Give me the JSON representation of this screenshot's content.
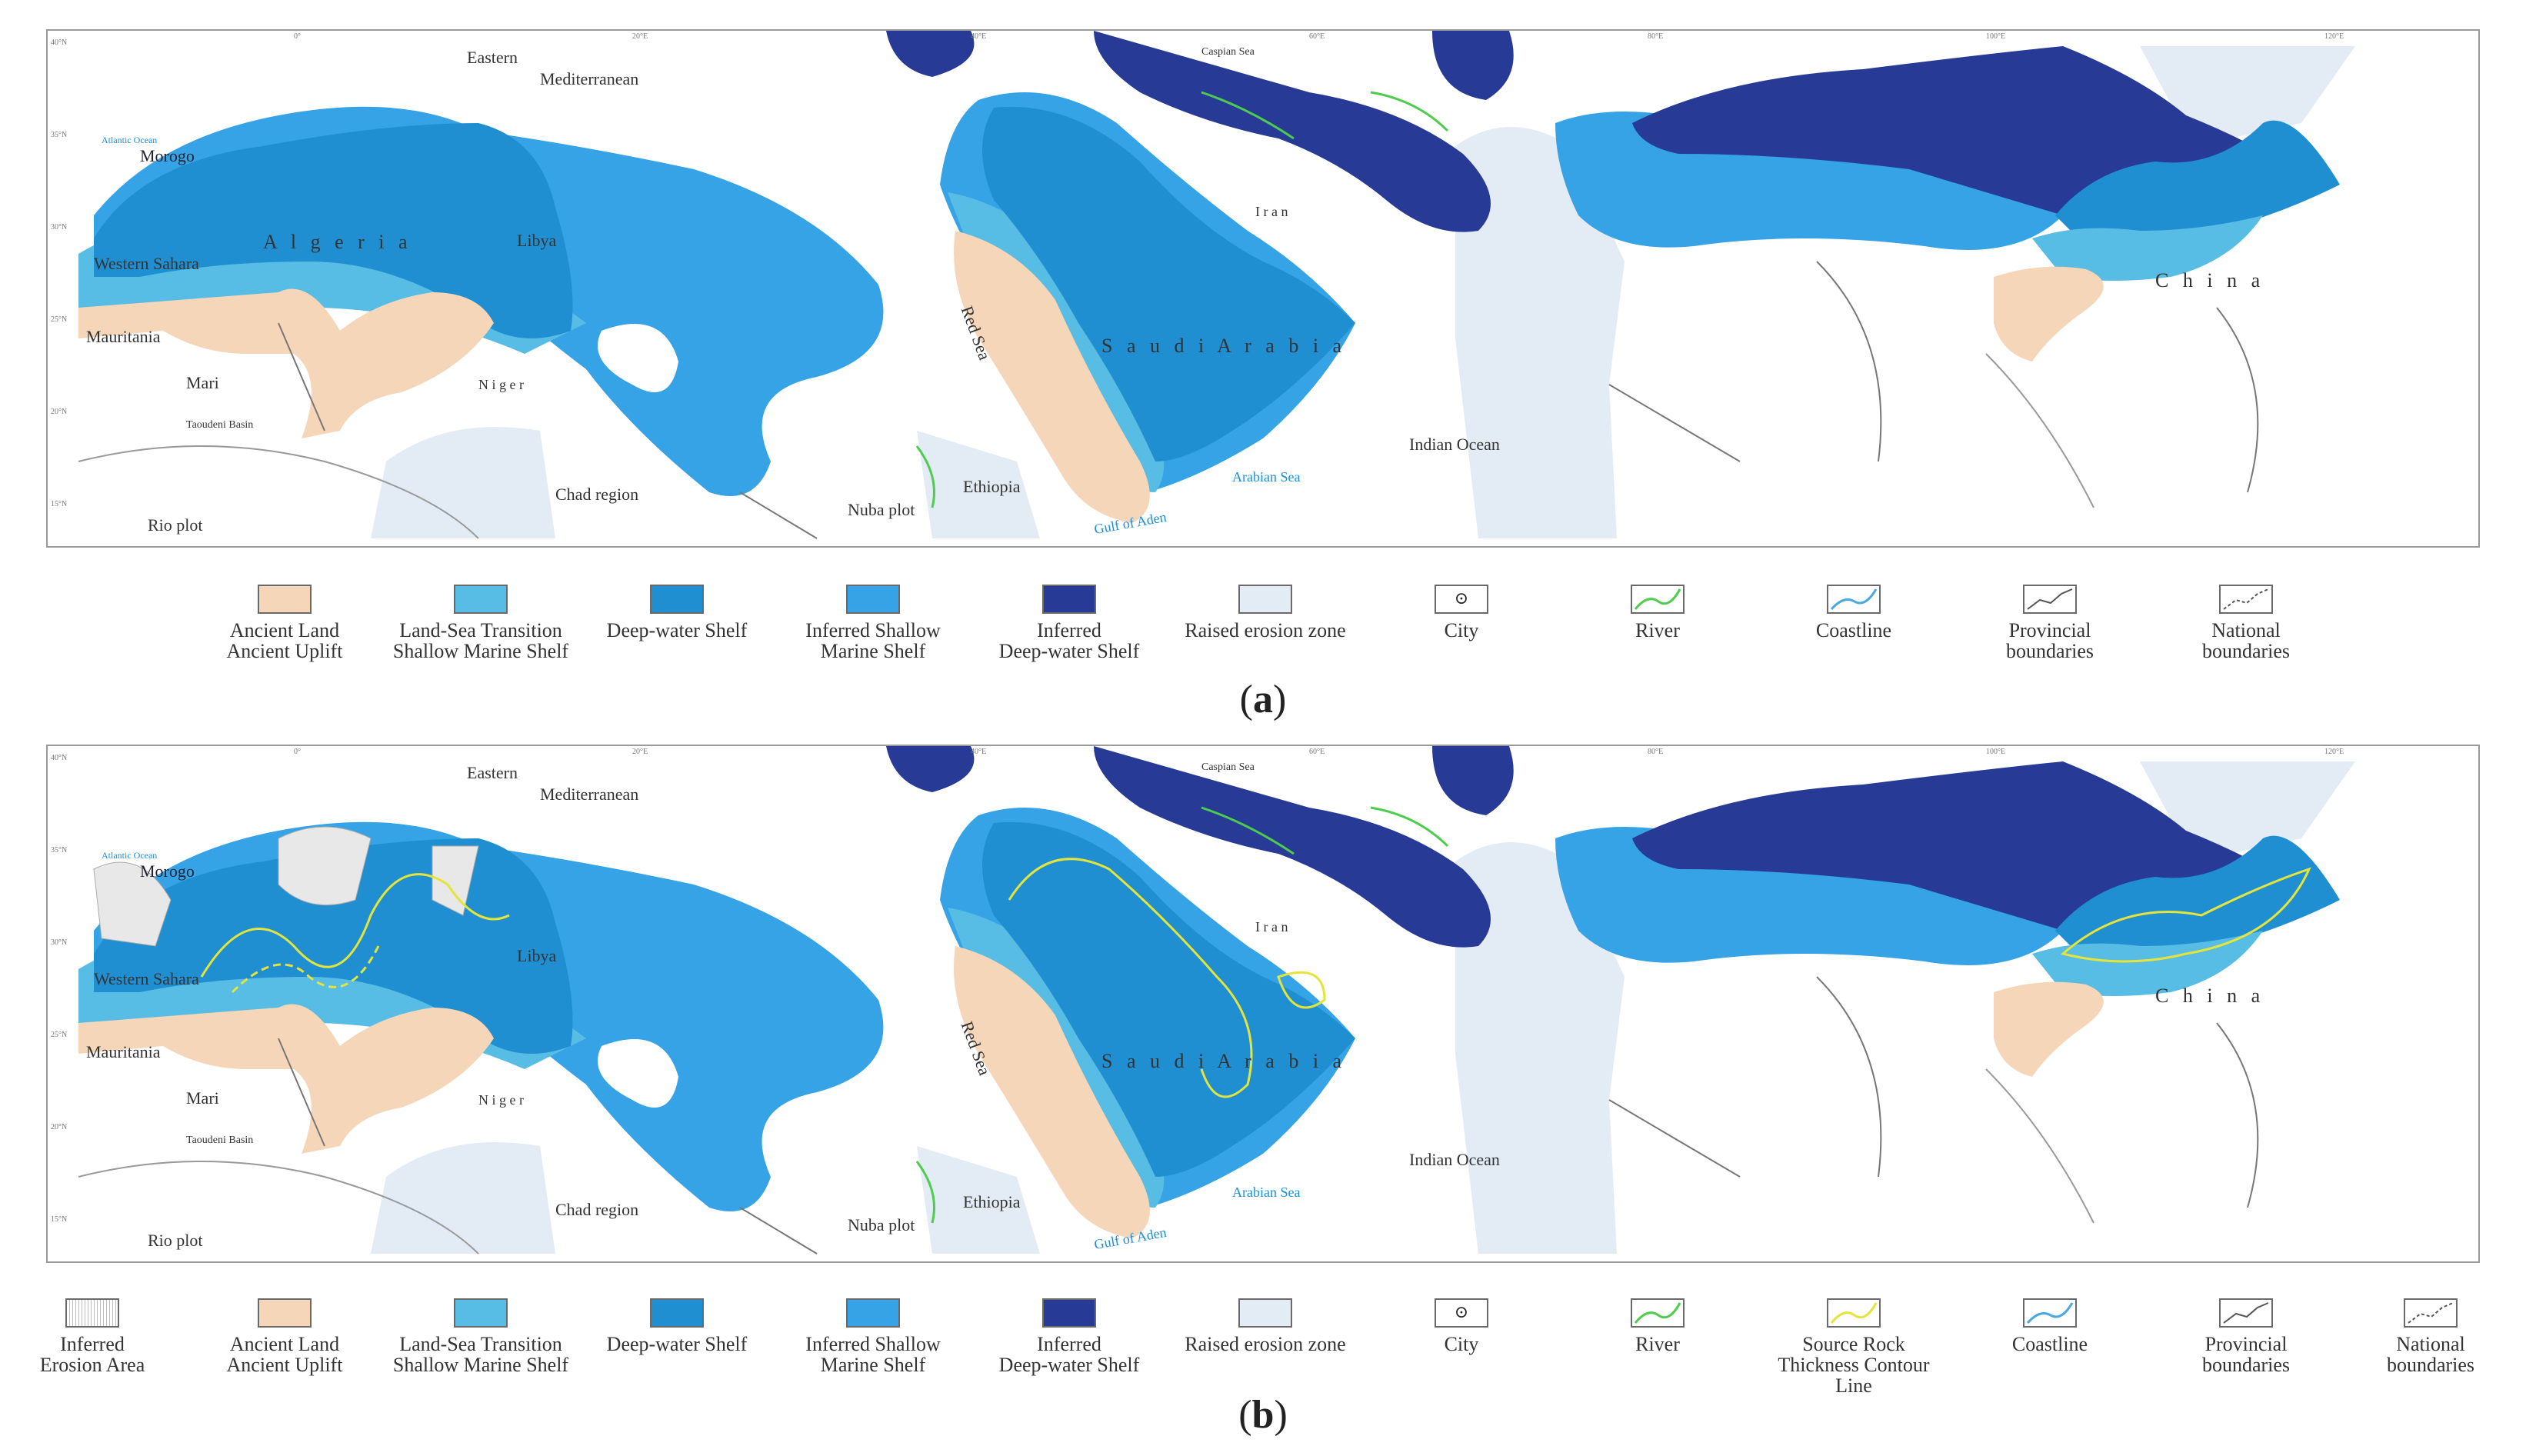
{
  "colors": {
    "ancient_land": "#f5d6b8",
    "transition": "#58bde4",
    "deep_shelf": "#1f8fd2",
    "inferred_shallow": "#35a3e6",
    "inferred_deep": "#263a96",
    "raised_erosion": "#e3ecf5",
    "inferred_erosion": "#e8e8e8",
    "river": "#4dcc4d",
    "contour": "#e4e43a",
    "coastline": "#4aa8e0",
    "boundary": "#777777"
  },
  "icons": {
    "city": "city-icon",
    "river": "river-icon",
    "contour": "contour-line-icon",
    "coastline": "coastline-icon",
    "provincial": "provincial-boundary-icon",
    "national": "national-boundary-icon"
  },
  "panel_a": {
    "label_letter": "a",
    "map_labels": {
      "eastern": "Eastern",
      "mediterranean": "Mediterranean",
      "morocco": "Morogo",
      "algeria": "A l g e r i a",
      "libya": "Libya",
      "western_sahara": "Western Sahara",
      "mauritania": "Mauritania",
      "mari": "Mari",
      "taoudeni": "Taoudeni Basin",
      "niger": "N i g e r",
      "chad": "Chad region",
      "rio": "Rio plot",
      "nuba": "Nuba plot",
      "ethiopia": "Ethiopia",
      "red_sea": "Red Sea",
      "saudi": "S a u d i   A r a b i a",
      "arabian_sea": "Arabian Sea",
      "gulf_aden": "Gulf of Aden",
      "indian_ocean": "Indian Ocean",
      "iran": "I r a n",
      "caspian": "Caspian Sea",
      "china": "C h i n a",
      "atlantic": "Atlantic Ocean"
    },
    "legend": [
      {
        "key": "ancient",
        "line1": "Ancient Land",
        "line2": "Ancient Uplift"
      },
      {
        "key": "transition",
        "line1": "Land-Sea Transition",
        "line2": "Shallow Marine Shelf"
      },
      {
        "key": "deep",
        "line1": "Deep-water Shelf",
        "line2": ""
      },
      {
        "key": "shallow",
        "line1": "Inferred Shallow",
        "line2": "Marine Shelf"
      },
      {
        "key": "ideep",
        "line1": "Inferred",
        "line2": "Deep-water Shelf"
      },
      {
        "key": "raised",
        "line1": "Raised erosion zone",
        "line2": ""
      },
      {
        "key": "city",
        "line1": "City",
        "line2": ""
      },
      {
        "key": "river",
        "line1": "River",
        "line2": ""
      },
      {
        "key": "coast",
        "line1": "Coastline",
        "line2": ""
      },
      {
        "key": "prov",
        "line1": "Provincial",
        "line2": "boundaries"
      },
      {
        "key": "nat",
        "line1": "National",
        "line2": "boundaries"
      }
    ]
  },
  "panel_b": {
    "label_letter": "b",
    "legend": [
      {
        "key": "erosion",
        "line1": "Inferred",
        "line2": "Erosion Area"
      },
      {
        "key": "ancient",
        "line1": "Ancient Land",
        "line2": "Ancient Uplift"
      },
      {
        "key": "transition",
        "line1": "Land-Sea Transition",
        "line2": "Shallow Marine Shelf"
      },
      {
        "key": "deep",
        "line1": "Deep-water Shelf",
        "line2": ""
      },
      {
        "key": "shallow",
        "line1": "Inferred Shallow",
        "line2": "Marine Shelf"
      },
      {
        "key": "ideep",
        "line1": "Inferred",
        "line2": "Deep-water Shelf"
      },
      {
        "key": "raised",
        "line1": "Raised erosion zone",
        "line2": ""
      },
      {
        "key": "city",
        "line1": "City",
        "line2": ""
      },
      {
        "key": "river",
        "line1": "River",
        "line2": ""
      },
      {
        "key": "contour",
        "line1": "Source Rock",
        "line2": "Thickness Contour Line"
      },
      {
        "key": "coast",
        "line1": "Coastline",
        "line2": ""
      },
      {
        "key": "prov",
        "line1": "Provincial",
        "line2": "boundaries"
      },
      {
        "key": "nat",
        "line1": "National",
        "line2": "boundaries"
      }
    ]
  },
  "ticks_top": [
    "0°",
    "20°E",
    "40°E",
    "60°E",
    "80°E",
    "100°E",
    "120°E"
  ],
  "ticks_side": [
    "40°N",
    "35°N",
    "30°N",
    "25°N",
    "20°N",
    "15°N"
  ]
}
